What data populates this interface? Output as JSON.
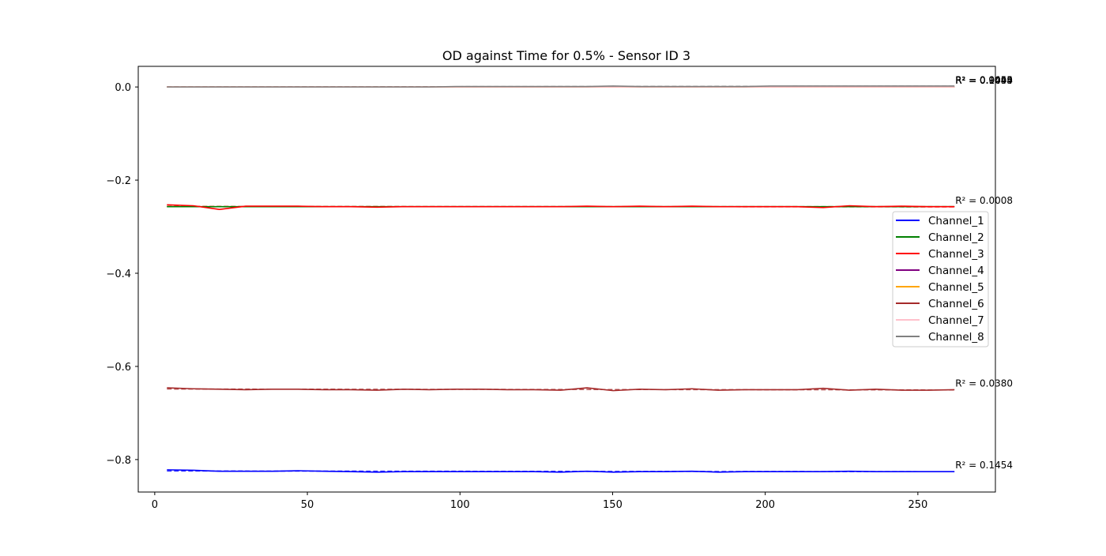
{
  "chart_data": {
    "type": "line",
    "title": "OD against Time for 0.5% - Sensor ID 3",
    "xlabel": "",
    "ylabel": "",
    "xlim": [
      -5.4,
      275.4
    ],
    "ylim": [
      -0.8697,
      0.0443
    ],
    "xticks": [
      0,
      50,
      100,
      150,
      200,
      250
    ],
    "xtick_labels": [
      "0",
      "50",
      "100",
      "150",
      "200",
      "250"
    ],
    "yticks": [
      0.0,
      -0.2,
      -0.4,
      -0.6,
      -0.8
    ],
    "ytick_labels": [
      "0.0",
      "−0.2",
      "−0.4",
      "−0.6",
      "−0.8"
    ],
    "grid": false,
    "legend_position": "center-right",
    "x": [
      4,
      12.6,
      21.2,
      29.8,
      38.4,
      47,
      55.6,
      64.2,
      72.8,
      81.4,
      90,
      98.6,
      107.2,
      115.8,
      124.4,
      133,
      141.6,
      150.2,
      158.8,
      167.4,
      176,
      184.6,
      193.2,
      201.8,
      210.4,
      219,
      227.6,
      236.2,
      244.8,
      253.4,
      262
    ],
    "series": [
      {
        "name": "Channel_1",
        "color": "#0000ff",
        "values": [
          -0.822,
          -0.823,
          -0.825,
          -0.825,
          -0.825,
          -0.824,
          -0.825,
          -0.826,
          -0.827,
          -0.826,
          -0.826,
          -0.826,
          -0.826,
          -0.826,
          -0.826,
          -0.827,
          -0.825,
          -0.827,
          -0.826,
          -0.826,
          -0.825,
          -0.827,
          -0.826,
          -0.826,
          -0.826,
          -0.826,
          -0.825,
          -0.826,
          -0.826,
          -0.826,
          -0.826
        ],
        "fit": [
          -0.8245,
          -0.826
        ],
        "r2_label": "R² = 0.1454"
      },
      {
        "name": "Channel_2",
        "color": "#008000",
        "values": [
          -0.257,
          -0.257,
          -0.257,
          -0.257,
          -0.257,
          -0.257,
          -0.257,
          -0.257,
          -0.257,
          -0.257,
          -0.257,
          -0.257,
          -0.257,
          -0.257,
          -0.257,
          -0.257,
          -0.257,
          -0.257,
          -0.257,
          -0.257,
          -0.257,
          -0.257,
          -0.257,
          -0.257,
          -0.257,
          -0.257,
          -0.257,
          -0.257,
          -0.257,
          -0.257,
          -0.257
        ],
        "fit": [
          -0.257,
          -0.257
        ],
        "r2_label": ""
      },
      {
        "name": "Channel_3",
        "color": "#ff0000",
        "values": [
          -0.253,
          -0.255,
          -0.263,
          -0.256,
          -0.256,
          -0.256,
          -0.257,
          -0.257,
          -0.258,
          -0.257,
          -0.257,
          -0.257,
          -0.257,
          -0.257,
          -0.257,
          -0.257,
          -0.256,
          -0.257,
          -0.256,
          -0.257,
          -0.256,
          -0.257,
          -0.257,
          -0.257,
          -0.257,
          -0.259,
          -0.255,
          -0.257,
          -0.256,
          -0.257,
          -0.257
        ],
        "fit": [
          -0.2565,
          -0.2575
        ],
        "r2_label": "R² = 0.0008"
      },
      {
        "name": "Channel_4",
        "color": "#800080",
        "values": [
          0.0,
          0.0,
          0.0,
          0.0,
          0.0,
          0.0,
          0.0,
          0.0,
          0.0,
          0.0,
          0.0,
          0.0,
          0.0,
          0.0,
          0.0,
          0.0,
          0.0,
          0.0,
          0.0,
          0.0,
          0.0,
          0.0,
          0.0,
          0.0,
          0.0,
          0.0,
          0.0,
          0.0,
          0.0,
          0.0,
          0.0
        ],
        "fit": [
          0.0,
          0.0
        ],
        "r2_label": ""
      },
      {
        "name": "Channel_5",
        "color": "#ffa500",
        "values": [
          0.0,
          0.0,
          0.0,
          0.0,
          0.0,
          0.0,
          0.0,
          0.0,
          0.0,
          0.0,
          0.0,
          0.0,
          0.0,
          0.0,
          0.0,
          0.0,
          0.0,
          0.0,
          0.0,
          0.0,
          0.0,
          0.0,
          0.0,
          0.0,
          0.0,
          0.0,
          0.0,
          0.0,
          0.0,
          0.0,
          0.0
        ],
        "fit": [
          0.0,
          0.0
        ],
        "r2_label": ""
      },
      {
        "name": "Channel_6",
        "color": "#a52a2a",
        "values": [
          -0.646,
          -0.648,
          -0.649,
          -0.65,
          -0.649,
          -0.649,
          -0.65,
          -0.65,
          -0.651,
          -0.649,
          -0.65,
          -0.649,
          -0.649,
          -0.65,
          -0.65,
          -0.651,
          -0.646,
          -0.652,
          -0.649,
          -0.65,
          -0.648,
          -0.651,
          -0.65,
          -0.65,
          -0.65,
          -0.647,
          -0.651,
          -0.649,
          -0.651,
          -0.651,
          -0.65
        ],
        "fit": [
          -0.6485,
          -0.6505
        ],
        "r2_label": "R² = 0.0380"
      },
      {
        "name": "Channel_7",
        "color": "#ffc0cb",
        "values": [
          0.0,
          0.0,
          0.0,
          0.0,
          0.0,
          0.0,
          0.0,
          0.0,
          0.0,
          0.0,
          0.0,
          0.0,
          0.0,
          0.0,
          0.0,
          0.0,
          0.0,
          0.0,
          0.0,
          0.0,
          0.0,
          0.0,
          0.0,
          0.0,
          0.0,
          0.0,
          0.0,
          0.0,
          0.0,
          0.0,
          0.0
        ],
        "fit": [
          0.0,
          0.0
        ],
        "r2_label": ""
      },
      {
        "name": "Channel_8",
        "color": "#808080",
        "values": [
          0.0,
          0.0,
          0.0,
          0.0,
          0.0,
          0.0,
          0.0,
          0.0,
          0.0,
          0.0,
          0.0,
          0.001,
          0.001,
          0.001,
          0.001,
          0.001,
          0.001,
          0.002,
          0.001,
          0.001,
          0.001,
          0.001,
          0.001,
          0.002,
          0.002,
          0.002,
          0.002,
          0.002,
          0.002,
          0.002,
          0.002
        ],
        "fit": [
          0.0,
          0.002
        ],
        "r2_label": ""
      }
    ],
    "top_annotations": [
      "R² = 0.9044",
      "R² = 0.9455",
      "R² = 0.1499",
      "R² = 0.0043"
    ]
  }
}
